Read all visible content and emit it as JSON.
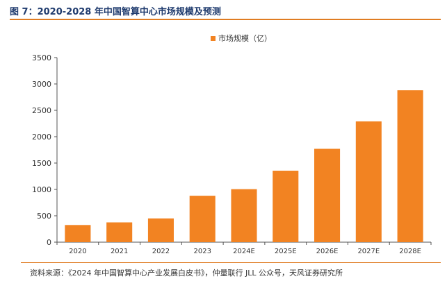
{
  "figure": {
    "title": "图 7：2020-2028 年中国智算中心市场规模及预测",
    "source": "资料来源：《2024 年中国智算中心产业发展白皮书》，仲量联行 JLL 公众号，天风证券研究所"
  },
  "colors": {
    "bar": "#f28322",
    "title": "#1f3b6e",
    "rule": "#e07c22",
    "axis": "#555555"
  },
  "chart_data": {
    "type": "bar",
    "title": "",
    "xlabel": "",
    "ylabel": "",
    "categories": [
      "2020",
      "2021",
      "2022",
      "2023",
      "2024E",
      "2025E",
      "2026E",
      "2027E",
      "2028E"
    ],
    "series": [
      {
        "name": "市场规模（亿）",
        "values": [
          325,
          375,
          450,
          880,
          1005,
          1355,
          1770,
          2290,
          2880
        ]
      }
    ],
    "ylim": [
      0,
      3500
    ],
    "yticks": [
      0,
      500,
      1000,
      1500,
      2000,
      2500,
      3000,
      3500
    ],
    "grid": false,
    "legend_position": "top-right"
  }
}
